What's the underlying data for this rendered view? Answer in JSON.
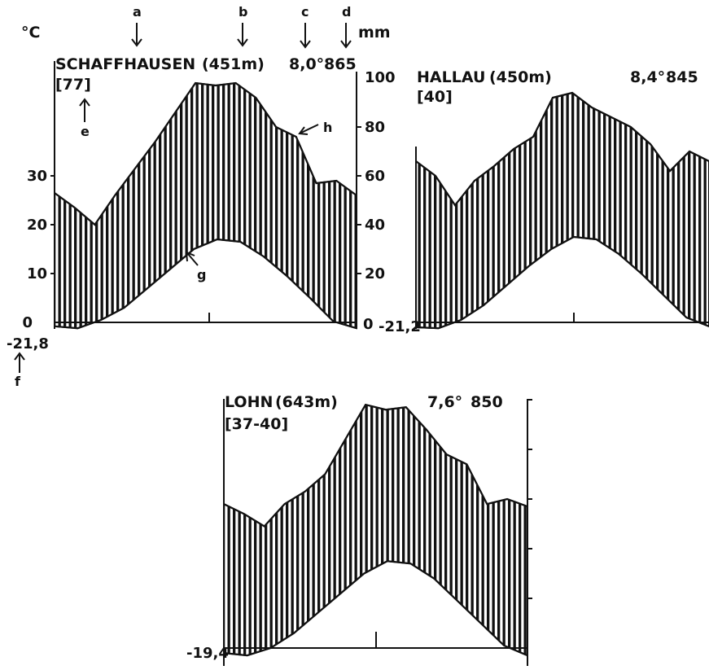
{
  "chart_data": [
    {
      "type": "area",
      "station": "SCHAFFHAUSEN",
      "altitude": "(451m)",
      "years": "[77]",
      "mean_temp": "8,0°",
      "annual_precip": "865",
      "min_temp_label": "-21,8",
      "left_unit": "°C",
      "right_unit": "mm",
      "temp_ticks": [
        "0",
        "10",
        "20",
        "30"
      ],
      "precip_ticks": [
        "0",
        "20",
        "40",
        "60",
        "80",
        "100"
      ],
      "precip_mm": [
        53,
        47,
        40,
        52,
        63,
        74,
        86,
        98,
        97,
        98,
        92,
        80,
        76,
        57,
        58,
        52
      ],
      "temp_c": [
        -0.8,
        -1.2,
        0.5,
        3,
        7,
        11,
        15,
        17,
        16.5,
        13.5,
        9.5,
        5,
        0.2,
        -1.2
      ]
    },
    {
      "type": "area",
      "station": "HALLAU",
      "altitude": "(450m)",
      "years": "[40]",
      "mean_temp": "8,4°",
      "annual_precip": "845",
      "min_temp_label": "-21,2",
      "precip_mm": [
        66,
        60,
        48,
        58,
        64,
        71,
        76,
        92,
        94,
        88,
        84,
        80,
        73,
        62,
        70,
        66
      ],
      "temp_c": [
        -1,
        -1.2,
        0.5,
        3.5,
        7.5,
        11.5,
        15,
        17.5,
        17,
        14,
        10,
        5.5,
        1,
        -0.8
      ]
    },
    {
      "type": "area",
      "station": "LOHN",
      "altitude": "(643m)",
      "years": "[37-40]",
      "mean_temp": "7,6°",
      "annual_precip": "850",
      "min_temp_label": "-19,4",
      "precip_mm": [
        58,
        54,
        49,
        58,
        63,
        70,
        84,
        98,
        96,
        97,
        88,
        78,
        74,
        58,
        60,
        57
      ],
      "temp_c": [
        -1,
        -1.5,
        0,
        3,
        7,
        11,
        15,
        17.5,
        17,
        14,
        9.5,
        5,
        0.5,
        -1.5
      ]
    }
  ],
  "annotations": {
    "a": "a",
    "b": "b",
    "c": "c",
    "d": "d",
    "e": "e",
    "f": "f",
    "g": "g",
    "h": "h"
  }
}
